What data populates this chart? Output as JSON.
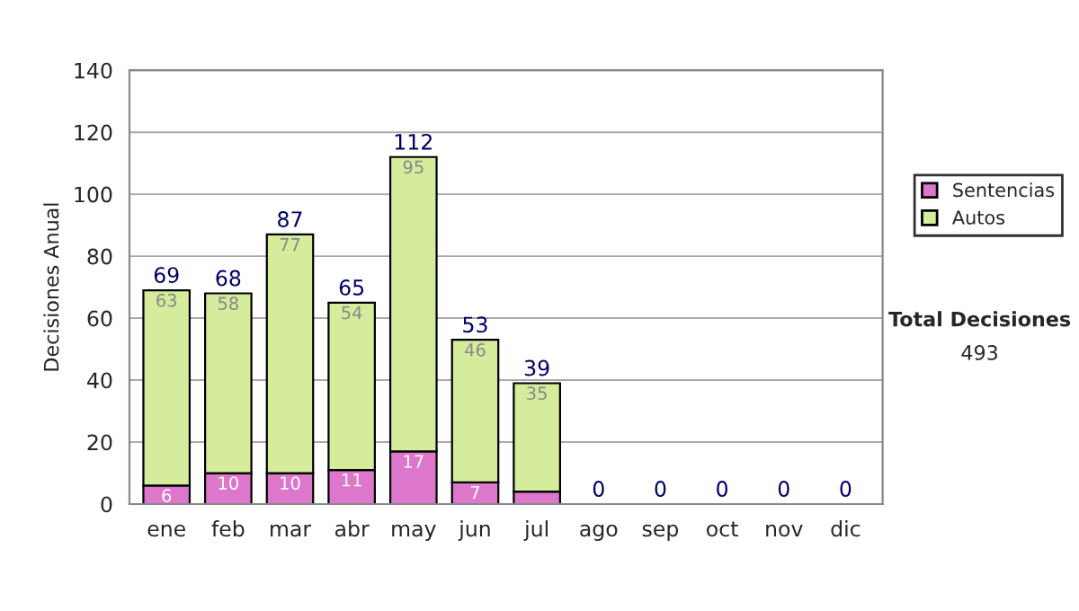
{
  "chart_data": {
    "type": "bar",
    "stacked": true,
    "ylabel": "Decisiones Anual",
    "categories": [
      "ene",
      "feb",
      "mar",
      "abr",
      "may",
      "jun",
      "jul",
      "ago",
      "sep",
      "oct",
      "nov",
      "dic"
    ],
    "series": [
      {
        "name": "Sentencias",
        "color": "#dd77cc",
        "values": [
          6,
          10,
          10,
          11,
          17,
          7,
          4,
          0,
          0,
          0,
          0,
          0
        ],
        "value_labels": [
          "6",
          "10",
          "10",
          "11",
          "17",
          "7",
          null,
          null,
          null,
          null,
          null,
          null
        ]
      },
      {
        "name": "Autos",
        "color": "#d4ec9c",
        "values": [
          63,
          58,
          77,
          54,
          95,
          46,
          35,
          0,
          0,
          0,
          0,
          0
        ],
        "value_labels": [
          "63",
          "58",
          "77",
          "54",
          "95",
          "46",
          "35",
          null,
          null,
          null,
          null,
          null
        ]
      }
    ],
    "totals": [
      "69",
      "68",
      "87",
      "65",
      "112",
      "53",
      "39",
      "0",
      "0",
      "0",
      "0",
      "0"
    ],
    "ylim": [
      0,
      140
    ],
    "yticks": [
      0,
      20,
      40,
      60,
      80,
      100,
      120,
      140
    ],
    "grid": "y",
    "legend": "right",
    "annotations": [
      "Total Decisiones",
      "493"
    ]
  }
}
